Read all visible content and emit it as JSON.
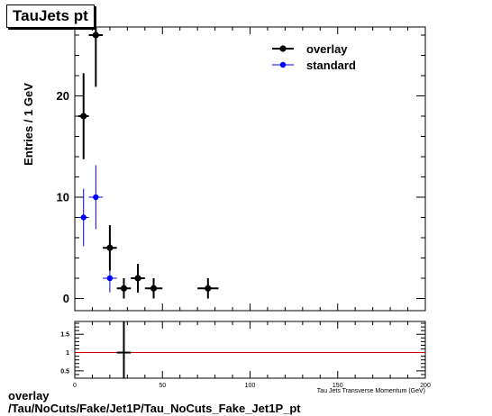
{
  "title": "TauJets pt",
  "footer": {
    "line1": "overlay",
    "line2": "/Tau/NoCuts/Fake/Jet1P/Tau_NoCuts_Fake_Jet1P_pt"
  },
  "chart_data": [
    {
      "type": "scatter",
      "panel": "main",
      "ylabel": "Entries / 1 GeV",
      "xlim": [
        0,
        200
      ],
      "ylim": [
        -1.2,
        26.8
      ],
      "y_ticks": [
        0,
        10,
        20
      ],
      "legend_position": "top-right",
      "series": [
        {
          "name": "overlay",
          "color": "#000000",
          "points": [
            {
              "x": 5,
              "xerr": 3,
              "y": 18,
              "yerr": 4.24
            },
            {
              "x": 12,
              "xerr": 4,
              "y": 26,
              "yerr": 5.1
            },
            {
              "x": 20,
              "xerr": 4,
              "y": 5,
              "yerr": 2.24
            },
            {
              "x": 28,
              "xerr": 4,
              "y": 1,
              "yerr": 1
            },
            {
              "x": 36,
              "xerr": 4,
              "y": 2,
              "yerr": 1.41
            },
            {
              "x": 45,
              "xerr": 5,
              "y": 1,
              "yerr": 1
            },
            {
              "x": 76,
              "xerr": 6,
              "y": 1,
              "yerr": 1
            }
          ]
        },
        {
          "name": "standard",
          "color": "#0000ff",
          "points": [
            {
              "x": 5,
              "xerr": 3,
              "y": 8,
              "yerr": 2.83
            },
            {
              "x": 12,
              "xerr": 4,
              "y": 10,
              "yerr": 3.16
            },
            {
              "x": 20,
              "xerr": 4,
              "y": 2,
              "yerr": 1.41
            }
          ]
        }
      ]
    },
    {
      "type": "scatter",
      "panel": "ratio",
      "xlabel": "Tau Jets Transverse Momentum (GeV)",
      "xlim": [
        0,
        200
      ],
      "ylim": [
        0.3,
        1.85
      ],
      "x_ticks": [
        0,
        50,
        100,
        150,
        200
      ],
      "y_ticks": [
        0.5,
        1,
        1.5
      ],
      "reference_line": {
        "y": 1,
        "color": "#cc0000"
      },
      "points": [
        {
          "x": 28,
          "xerr": 4,
          "y": 1,
          "yerr": 2
        }
      ]
    }
  ]
}
